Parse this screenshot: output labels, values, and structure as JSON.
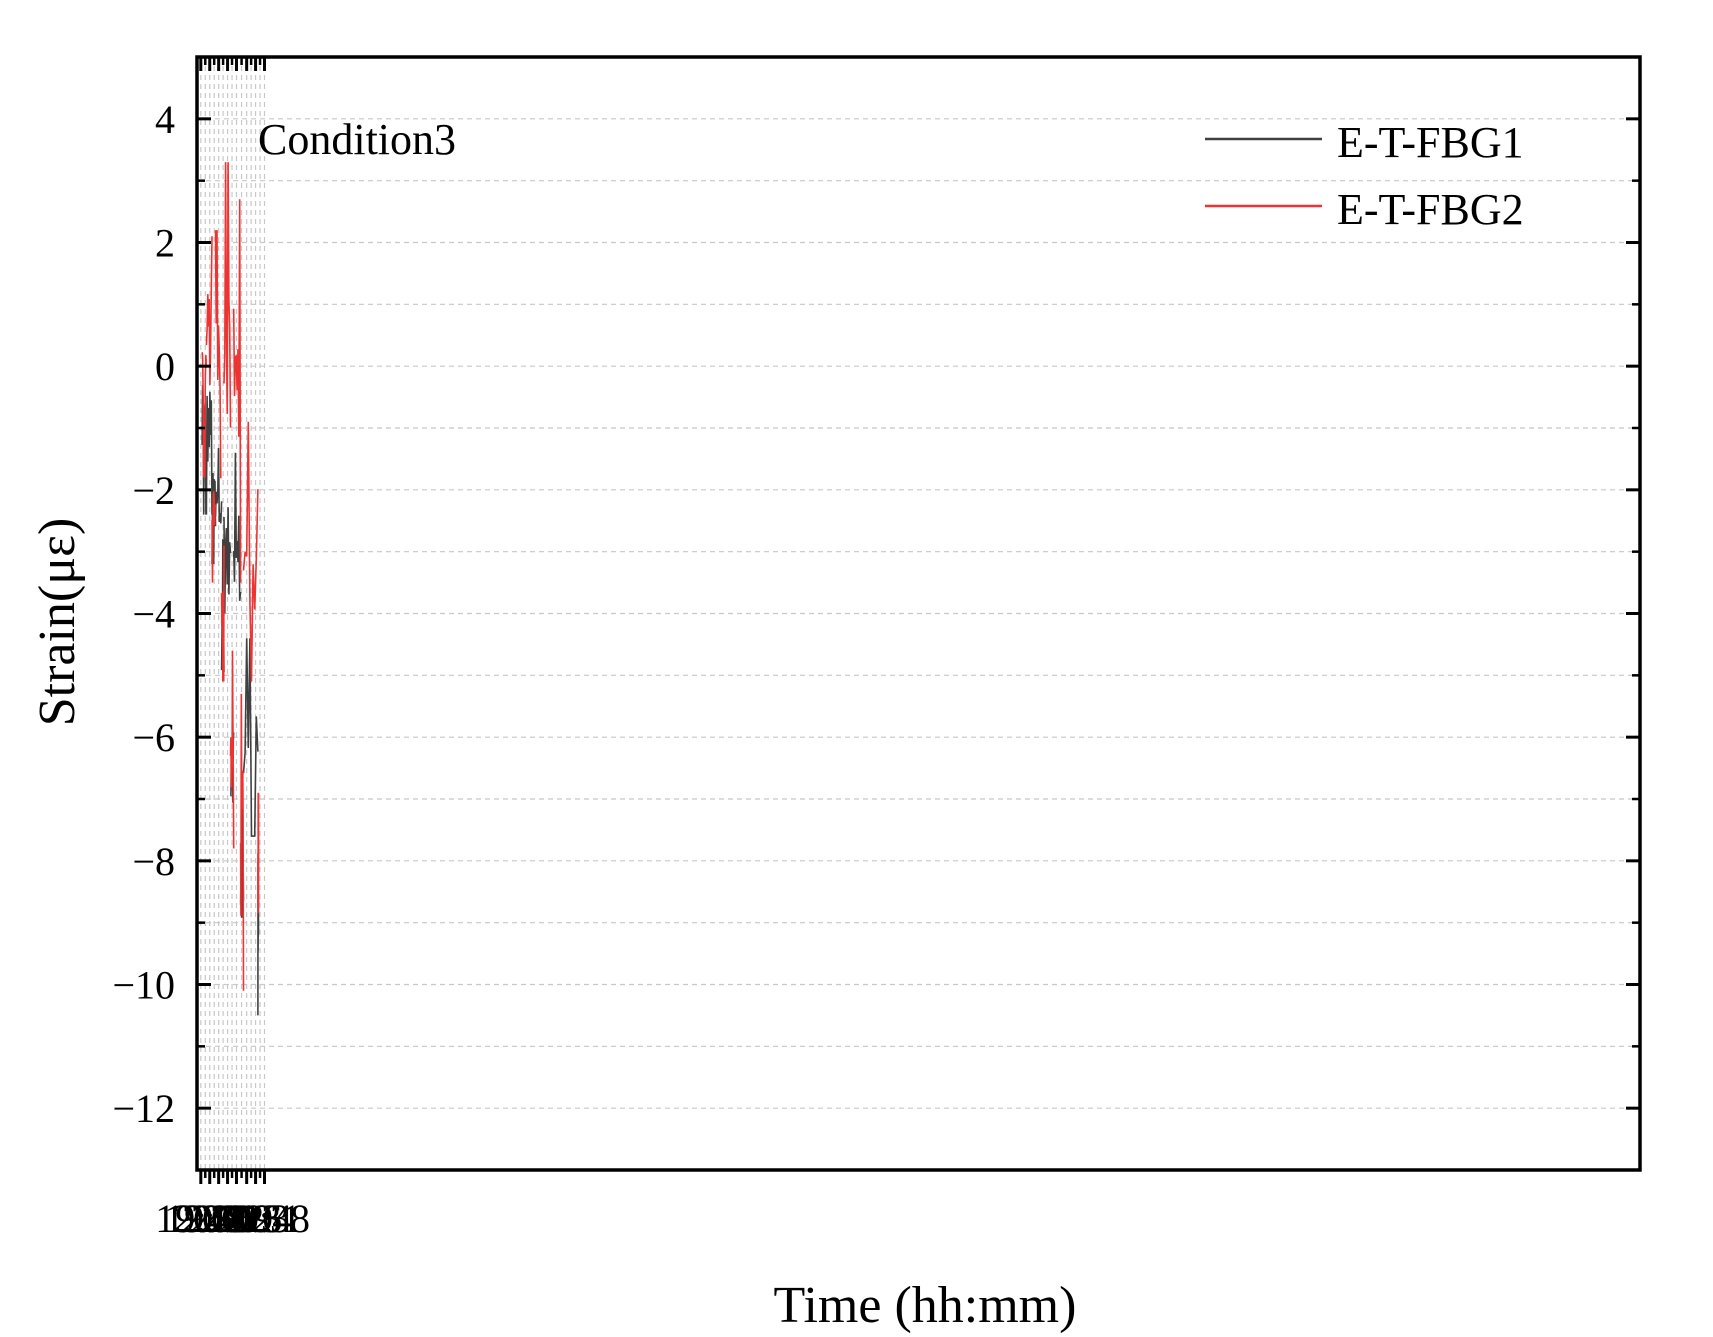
{
  "chart_data": {
    "type": "line",
    "title": "",
    "annotation": "Condition3",
    "xlabel": "Time (hh:mm)",
    "ylabel": "Strain(με)",
    "xlim": [
      1185,
      2318
    ],
    "ylim": [
      -13,
      5
    ],
    "x_ticks": [
      {
        "value": 1188,
        "label": "19:48"
      },
      {
        "value": 1195,
        "label": "19:55"
      },
      {
        "value": 1202,
        "label": "20:02"
      },
      {
        "value": 1209,
        "label": "20:09"
      },
      {
        "value": 1216,
        "label": "20:16"
      },
      {
        "value": 1224,
        "label": "20:24"
      },
      {
        "value": 1231,
        "label": "20:31"
      },
      {
        "value": 1238,
        "label": "20:38"
      }
    ],
    "y_ticks": [
      {
        "value": 4,
        "label": "4"
      },
      {
        "value": 2,
        "label": "2"
      },
      {
        "value": 0,
        "label": "0"
      },
      {
        "value": -2,
        "label": "−2"
      },
      {
        "value": -4,
        "label": "−4"
      },
      {
        "value": -6,
        "label": "−6"
      },
      {
        "value": -8,
        "label": "−8"
      },
      {
        "value": -10,
        "label": "−10"
      },
      {
        "value": -12,
        "label": "−12"
      }
    ],
    "grid": true,
    "legend_position": "top-right",
    "series": [
      {
        "name": "E-T-FBG1",
        "color": "#404040",
        "segments": [
          {
            "x_start": 1189.0,
            "x_end": 1192.4,
            "high": 0.4,
            "low": -2.4
          },
          {
            "x_start": 1192.4,
            "x_end": 1196.8,
            "high": 0.4,
            "low": -2.4
          },
          {
            "x_start": 1196.8,
            "x_end": 1199.5,
            "high": -1.2,
            "low": -3.2
          },
          {
            "x_start": 1199.5,
            "x_end": 1204.3,
            "high": -0.6,
            "low": -3.2
          },
          {
            "x_start": 1204.3,
            "x_end": 1206.2,
            "high": -2.8,
            "low": -6.1
          },
          {
            "x_start": 1206.2,
            "x_end": 1211.3,
            "high": -1.4,
            "low": -4.9
          },
          {
            "x_start": 1211.3,
            "x_end": 1213.8,
            "high": -4.9,
            "low": -7.8
          },
          {
            "x_start": 1213.8,
            "x_end": 1219.2,
            "high": -1.4,
            "low": -4.9
          },
          {
            "x_start": 1219.2,
            "x_end": 1221.5,
            "high": -6.7,
            "low": -10.5
          },
          {
            "x_start": 1221.5,
            "x_end": 1232.8,
            "high": -4.4,
            "low": -7.6
          },
          {
            "x_start": 1232.8,
            "x_end": 1233.4,
            "high": -7.0,
            "low": -10.5
          }
        ]
      },
      {
        "name": "E-T-FBG2",
        "color": "#ee3333",
        "segments": [
          {
            "x_start": 1189.0,
            "x_end": 1192.4,
            "high": 1.5,
            "low": -1.8
          },
          {
            "x_start": 1192.4,
            "x_end": 1196.8,
            "high": 2.1,
            "low": -1.2
          },
          {
            "x_start": 1196.8,
            "x_end": 1199.5,
            "high": -1.2,
            "low": -3.5
          },
          {
            "x_start": 1199.5,
            "x_end": 1204.3,
            "high": 2.2,
            "low": -1.8
          },
          {
            "x_start": 1204.3,
            "x_end": 1206.2,
            "high": -2.9,
            "low": -5.1
          },
          {
            "x_start": 1206.2,
            "x_end": 1211.3,
            "high": 3.3,
            "low": -2.9
          },
          {
            "x_start": 1211.3,
            "x_end": 1213.8,
            "high": -4.6,
            "low": -7.8
          },
          {
            "x_start": 1213.8,
            "x_end": 1219.2,
            "high": 2.7,
            "low": -3.5
          },
          {
            "x_start": 1219.2,
            "x_end": 1221.5,
            "high": -5.3,
            "low": -10.1
          },
          {
            "x_start": 1221.5,
            "x_end": 1232.8,
            "high": -0.9,
            "low": -5.1
          },
          {
            "x_start": 1232.8,
            "x_end": 1233.4,
            "high": -6.9,
            "low": -9.6
          }
        ]
      }
    ]
  }
}
